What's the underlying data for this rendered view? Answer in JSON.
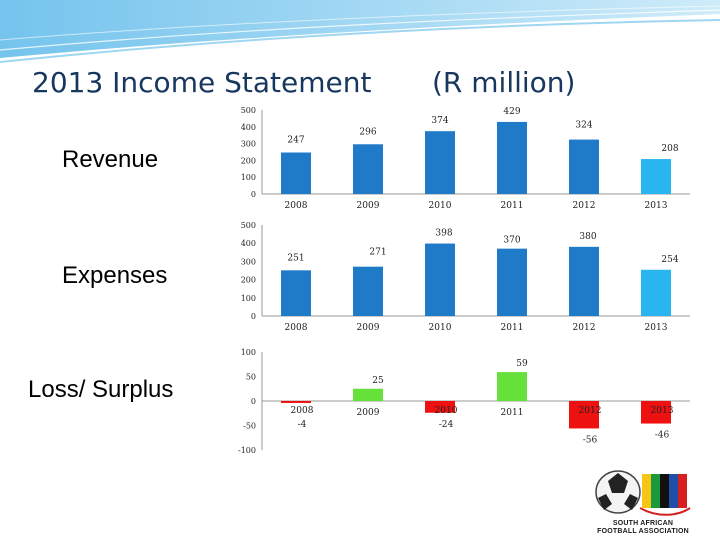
{
  "header": {
    "title": "2013 Income Statement",
    "unit": "(R million)"
  },
  "logo": {
    "line1": "SOUTH AFRICAN",
    "line2": "FOOTBALL ASSOCIATION"
  },
  "colors": {
    "bar_blue": "#1f7bc8",
    "bar_light_blue": "#29b6f0",
    "bar_green": "#66e03a",
    "bar_red": "#ee1111",
    "title": "#17375e"
  },
  "chart_data": [
    {
      "type": "bar",
      "label": "Revenue",
      "categories": [
        "2008",
        "2009",
        "2010",
        "2011",
        "2012",
        "2013"
      ],
      "values": [
        247,
        296,
        374,
        429,
        324,
        208
      ],
      "ylim": [
        0,
        500
      ],
      "yticks": [
        0,
        100,
        200,
        300,
        400,
        500
      ],
      "grid": false
    },
    {
      "type": "bar",
      "label": "Expenses",
      "categories": [
        "2008",
        "2009",
        "2010",
        "2011",
        "2012",
        "2013"
      ],
      "values": [
        251,
        271,
        398,
        370,
        380,
        254
      ],
      "ylim": [
        0,
        500
      ],
      "yticks": [
        0,
        100,
        200,
        300,
        400,
        500
      ],
      "grid": false
    },
    {
      "type": "bar",
      "label": "Loss/ Surplus",
      "categories": [
        "2008",
        "2009",
        "2010",
        "2011",
        "2012",
        "2013"
      ],
      "values": [
        -4,
        25,
        -24,
        59,
        -56,
        -46
      ],
      "ylim": [
        -100,
        100
      ],
      "yticks": [
        -100,
        -50,
        0,
        50,
        100
      ],
      "grid": false
    }
  ]
}
